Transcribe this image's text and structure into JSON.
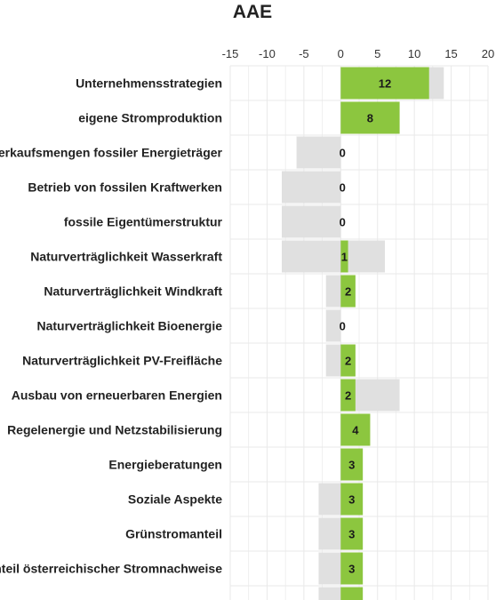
{
  "chart_data": {
    "type": "bar",
    "title": "AAE",
    "xlabel": "",
    "ylabel": "",
    "xlim": [
      -15,
      20
    ],
    "ticks": [
      "-15",
      "-10",
      "-5",
      "0",
      "5",
      "10",
      "15",
      "20"
    ],
    "grid": true,
    "legend": "none",
    "colors": {
      "score": "#8cc63f",
      "range": "#e0e0e0",
      "grid": "#e9e9e9"
    },
    "categories": [
      "Unternehmensstrategien",
      "eigene Stromproduktion",
      "Verkaufsmengen fossiler Energieträger",
      "Betrieb von fossilen Kraftwerken",
      "fossile Eigentümerstruktur",
      "Naturverträglichkeit Wasserkraft",
      "Naturverträglichkeit Windkraft",
      "Naturverträglichkeit Bioenergie",
      "Naturverträglichkeit PV-Freifläche",
      "Ausbau von erneuerbaren Energien",
      "Regelenergie und Netzstabilisierung",
      "Energieberatungen",
      "Soziale Aspekte",
      "Grünstromanteil",
      "Anteil österreichischer Stromnachweise",
      ""
    ],
    "series": [
      {
        "values": [
          12,
          8,
          0,
          0,
          0,
          1,
          2,
          0,
          2,
          2,
          4,
          3,
          3,
          3,
          3,
          3
        ]
      }
    ],
    "ranges": [
      [
        0,
        14
      ],
      [
        0,
        8
      ],
      [
        -6,
        0
      ],
      [
        -8,
        0
      ],
      [
        -8,
        0
      ],
      [
        -8,
        6
      ],
      [
        -2,
        2
      ],
      [
        -2,
        0
      ],
      [
        -2,
        2
      ],
      [
        0,
        8
      ],
      [
        0,
        4
      ],
      [
        0,
        3
      ],
      [
        -3,
        3
      ],
      [
        -3,
        3
      ],
      [
        -3,
        3
      ],
      [
        -3,
        3
      ]
    ],
    "value_labels": [
      "12",
      "8",
      "0",
      "0",
      "0",
      "1",
      "2",
      "0",
      "2",
      "2",
      "4",
      "3",
      "3",
      "3",
      "3",
      ""
    ]
  }
}
